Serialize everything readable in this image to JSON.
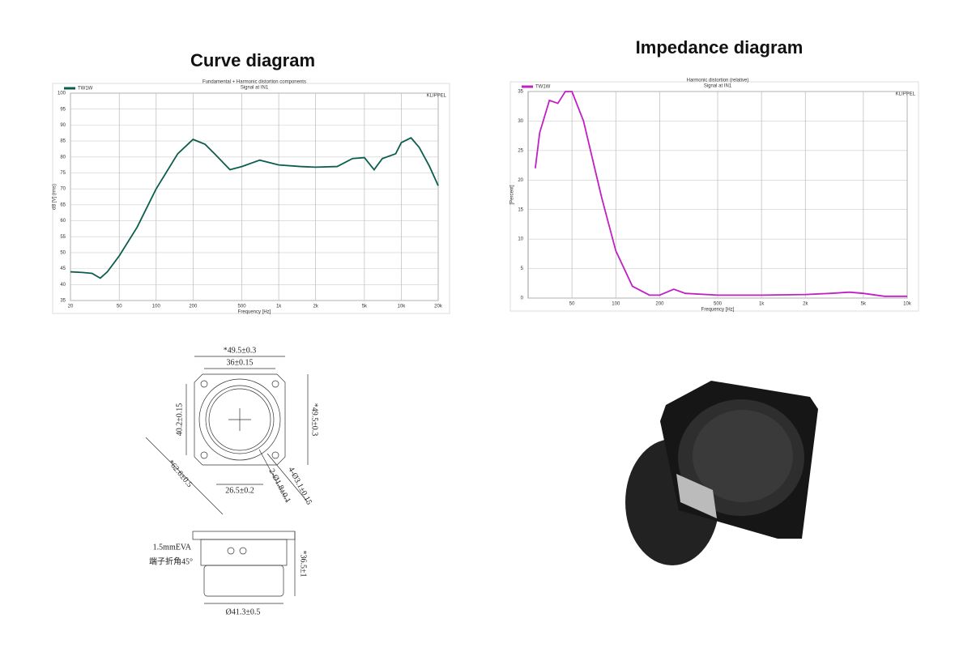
{
  "chart_data": [
    {
      "type": "line",
      "title": "Curve diagram",
      "subtitle": "Fundamental + Harmonic distortion components",
      "signal_label": "Signal at IN1",
      "corner_label": "KLIPPEL",
      "x_label": "Frequency [Hz]",
      "y_label": "dB [V] (rms)",
      "xscale": "log",
      "grid": true,
      "legend": "upper left",
      "xlim": [
        20,
        20000
      ],
      "ylim": [
        35,
        100
      ],
      "xticks": [
        20,
        50,
        100,
        200,
        500,
        {
          "value": 1000,
          "label": "1k"
        },
        {
          "value": 2000,
          "label": "2k"
        },
        {
          "value": 5000,
          "label": "5k"
        },
        {
          "value": 10000,
          "label": "10k"
        },
        {
          "value": 20000,
          "label": "20k"
        }
      ],
      "yticks": [
        35,
        40,
        45,
        50,
        55,
        60,
        65,
        70,
        75,
        80,
        85,
        90,
        95,
        100
      ],
      "x": [
        20,
        25,
        30,
        35,
        40,
        50,
        70,
        100,
        150,
        200,
        250,
        300,
        400,
        500,
        700,
        1000,
        1500,
        2000,
        3000,
        4000,
        5000,
        6000,
        7000,
        9000,
        10000,
        12000,
        14000,
        17000,
        20000
      ],
      "series": [
        {
          "name": "TW1W",
          "color": "#0b5e4e",
          "values": [
            44,
            43.8,
            43.5,
            42,
            44,
            49,
            58,
            70,
            81,
            85.5,
            84,
            81,
            76,
            77,
            79,
            77.5,
            77,
            76.8,
            77,
            79.5,
            79.8,
            76,
            79.5,
            81,
            84.5,
            86,
            83,
            77,
            71
          ]
        }
      ]
    },
    {
      "type": "line",
      "title": "Impedance diagram",
      "subtitle": "Harmonic distortion (relative)",
      "signal_label": "Signal at IN1",
      "corner_label": "KLIPPEL",
      "x_label": "Frequency [Hz]",
      "y_label": "[Percent]",
      "xscale": "log",
      "grid": true,
      "legend": "upper left",
      "xlim": [
        25,
        10000
      ],
      "ylim": [
        0,
        35
      ],
      "xticks": [
        50,
        100,
        200,
        500,
        {
          "value": 1000,
          "label": "1k"
        },
        {
          "value": 2000,
          "label": "2k"
        },
        {
          "value": 5000,
          "label": "5k"
        },
        {
          "value": 10000,
          "label": "10k"
        }
      ],
      "yticks": [
        0,
        5,
        10,
        15,
        20,
        25,
        30,
        35
      ],
      "x": [
        28,
        30,
        35,
        40,
        45,
        50,
        60,
        80,
        100,
        130,
        170,
        200,
        250,
        300,
        500,
        1000,
        2000,
        3000,
        4000,
        5000,
        7000,
        10000
      ],
      "series": [
        {
          "name": "TW1W",
          "color": "#c21fc4",
          "values": [
            22,
            28,
            33.5,
            33,
            35,
            35,
            30,
            17,
            8,
            2,
            0.5,
            0.5,
            1.5,
            0.8,
            0.5,
            0.5,
            0.6,
            0.8,
            1.0,
            0.8,
            0.3,
            0.3
          ]
        }
      ]
    }
  ],
  "drawing": {
    "top_width": "*49.5±0.3",
    "hole_spacing": "36±0.15",
    "mount_left": "40.2±0.15",
    "top_height": "*49.5±0.3",
    "diagonal": "*62.6±0.5",
    "bottom_spacing": "26.5±0.2",
    "terminal_holes": "2-Ø1.8±0.1",
    "mount_holes": "4-Ø3.1±0.15",
    "gasket": "1.5mmEVA",
    "terminal_note": "端子折角45°",
    "depth": "*36.5±1",
    "magnet_diameter": "Ø41.3±0.5"
  }
}
